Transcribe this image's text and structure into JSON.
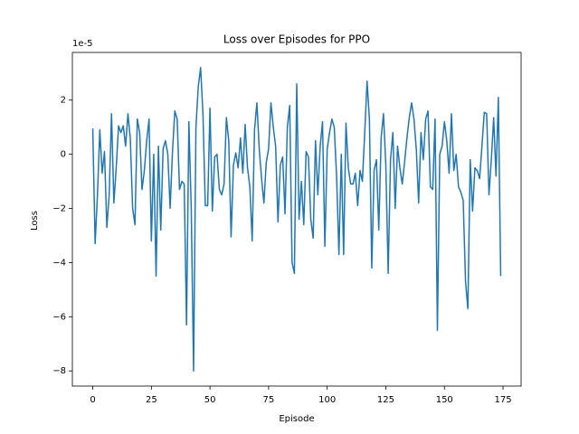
{
  "chart_data": {
    "type": "line",
    "title": "Loss over Episodes for PPO",
    "x_label": "Episode",
    "y_label": "Loss",
    "y_offset_text": "1e-5",
    "color": "#1f77b4",
    "x": [
      0,
      1,
      2,
      3,
      4,
      5,
      6,
      7,
      8,
      9,
      10,
      11,
      12,
      13,
      14,
      15,
      16,
      17,
      18,
      19,
      20,
      21,
      22,
      23,
      24,
      25,
      26,
      27,
      28,
      29,
      30,
      31,
      32,
      33,
      34,
      35,
      36,
      37,
      38,
      39,
      40,
      41,
      42,
      43,
      44,
      45,
      46,
      47,
      48,
      49,
      50,
      51,
      52,
      53,
      54,
      55,
      56,
      57,
      58,
      59,
      60,
      61,
      62,
      63,
      64,
      65,
      66,
      67,
      68,
      69,
      70,
      71,
      72,
      73,
      74,
      75,
      76,
      77,
      78,
      79,
      80,
      81,
      82,
      83,
      84,
      85,
      86,
      87,
      88,
      89,
      90,
      91,
      92,
      93,
      94,
      95,
      96,
      97,
      98,
      99,
      100,
      101,
      102,
      103,
      104,
      105,
      106,
      107,
      108,
      109,
      110,
      111,
      112,
      113,
      114,
      115,
      116,
      117,
      118,
      119,
      120,
      121,
      122,
      123,
      124,
      125,
      126,
      127,
      128,
      129,
      130,
      131,
      132,
      133,
      134,
      135,
      136,
      137,
      138,
      139,
      140,
      141,
      142,
      143,
      144,
      145,
      146,
      147,
      148,
      149,
      150,
      151,
      152,
      153,
      154,
      155,
      156,
      157,
      158,
      159,
      160,
      161,
      162,
      163,
      164,
      165,
      166,
      167,
      168,
      169,
      170,
      171,
      172,
      173,
      174
    ],
    "values": [
      0.95,
      -3.3,
      -1.5,
      0.9,
      -0.7,
      0.1,
      -2.7,
      -1.5,
      1.5,
      -1.8,
      -0.5,
      1.05,
      0.8,
      1.05,
      0.3,
      1.5,
      0.6,
      -2.0,
      -2.6,
      1.3,
      0.8,
      -1.3,
      -0.6,
      0.5,
      1.3,
      -3.2,
      0,
      -4.5,
      0.3,
      -2.8,
      0.2,
      0.5,
      0,
      -2.0,
      0.1,
      1.6,
      1.3,
      -1.3,
      -1.0,
      -1.1,
      -6.3,
      1.2,
      -2.0,
      -8.0,
      1.0,
      2.5,
      3.2,
      1.5,
      -1.9,
      -1.9,
      1.7,
      -2.1,
      -0.1,
      0,
      -1.3,
      -1.5,
      -1.1,
      1.35,
      0.5,
      -3.05,
      -0.4,
      0.05,
      -0.5,
      0.6,
      -0.7,
      1.1,
      -0.5,
      -1.2,
      -3.2,
      0.9,
      1.9,
      0.2,
      -0.9,
      -1.8,
      -0.3,
      0.2,
      1.9,
      1.0,
      0.3,
      -2.5,
      -0.4,
      -0.1,
      -2.2,
      1.0,
      1.8,
      -4.0,
      -4.4,
      2.6,
      -2.4,
      -1.0,
      -2.6,
      0.1,
      -0.1,
      -2.4,
      -3.1,
      0.5,
      -1.5,
      0.3,
      1.2,
      -3.4,
      0.2,
      0.8,
      1.3,
      1.0,
      -0.8,
      -3.7,
      0,
      -3.7,
      1.15,
      -0.5,
      -1.1,
      -1.1,
      -0.7,
      -1.9,
      -0.6,
      -1.0,
      0.8,
      2.7,
      1.3,
      -4.2,
      -0.6,
      -0.2,
      -2.8,
      0.6,
      1.5,
      -0.4,
      -4.4,
      -0.2,
      0.8,
      -2.0,
      0.3,
      -0.5,
      -1.1,
      -0.3,
      0.6,
      1.35,
      1.9,
      1.3,
      0.2,
      -1.8,
      0.8,
      -0.2,
      1.3,
      1.6,
      -1.2,
      -1.3,
      1.3,
      -6.5,
      0,
      0.3,
      1.2,
      0.5,
      -0.7,
      1.5,
      -0.6,
      0,
      -1.2,
      -1.4,
      -1.7,
      -4.7,
      -5.7,
      -0.2,
      -2.1,
      -0.5,
      -0.6,
      -0.9,
      0.3,
      1.55,
      1.5,
      -1.5,
      -0.2,
      1.35,
      -0.8,
      2.1,
      -4.5
    ],
    "xlim": [
      -8.7,
      182.7
    ],
    "xticks": [
      0,
      25,
      50,
      75,
      100,
      125,
      150,
      175
    ],
    "ylim": [
      -8.56,
      3.76
    ],
    "yticks": [
      {
        "value": -8,
        "label": "−8"
      },
      {
        "value": -6,
        "label": "−6"
      },
      {
        "value": -4,
        "label": "−4"
      },
      {
        "value": -2,
        "label": "−2"
      },
      0,
      2
    ]
  }
}
